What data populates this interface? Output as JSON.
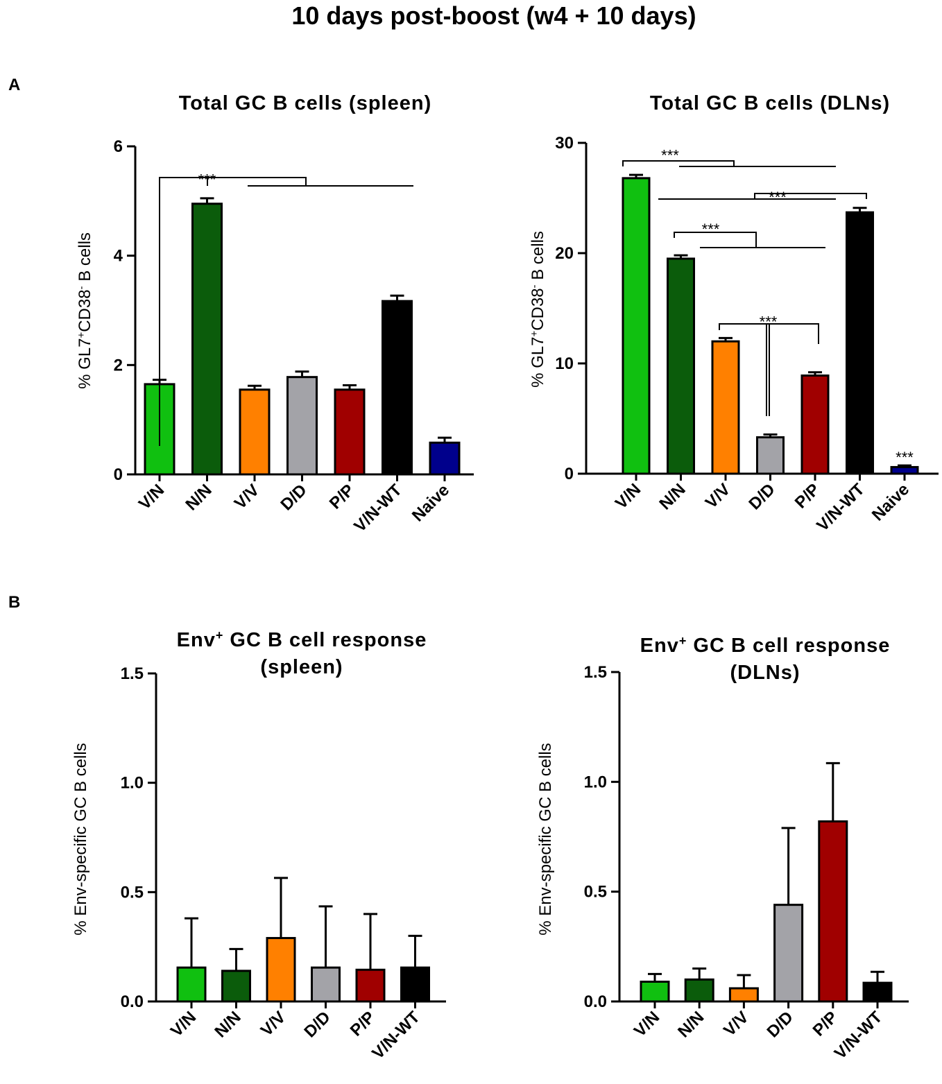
{
  "figure": {
    "title": "10 days post-boost (w4 + 10 days)",
    "panel_a_label": "A",
    "panel_b_label": "B"
  },
  "colors": {
    "V/N": "#10c010",
    "N/N": "#0b5c0b",
    "V/V": "#ff8000",
    "D/D": "#a3a3a8",
    "P/P": "#a00000",
    "V/N-WT": "#000000",
    "Naive": "#00008c"
  },
  "chart_data": [
    {
      "id": "a-spleen",
      "type": "bar",
      "title": "Total GC B cells (spleen)",
      "ylabel_parts": [
        "% GL7",
        "+",
        "CD38",
        "-",
        " B cells"
      ],
      "categories": [
        "V/N",
        "N/N",
        "V/V",
        "D/D",
        "P/P",
        "V/N-WT",
        "Naive"
      ],
      "values": [
        1.65,
        4.95,
        1.55,
        1.78,
        1.55,
        3.17,
        0.58
      ],
      "errors": [
        0.08,
        0.1,
        0.07,
        0.1,
        0.08,
        0.1,
        0.09
      ],
      "ylim": [
        0,
        6
      ],
      "yticks": [
        0,
        2,
        4,
        6
      ],
      "ytick_labels": [
        "0",
        "2",
        "4",
        "6"
      ],
      "significance": [
        {
          "label": "***",
          "x_category": "N/N",
          "y": 5.4
        }
      ]
    },
    {
      "id": "a-dln",
      "type": "bar",
      "title": "Total GC B cells (DLNs)",
      "ylabel_parts": [
        "% GL7",
        "+",
        "CD38",
        "-",
        " B cells"
      ],
      "categories": [
        "V/N",
        "N/N",
        "V/V",
        "D/D",
        "P/P",
        "V/N-WT",
        "Naive"
      ],
      "values": [
        26.8,
        19.5,
        12.0,
        3.3,
        8.9,
        23.7,
        0.6
      ],
      "errors": [
        0.3,
        0.3,
        0.3,
        0.25,
        0.3,
        0.4,
        0.15
      ],
      "ylim": [
        0,
        30
      ],
      "yticks": [
        0,
        10,
        20,
        30
      ],
      "ytick_labels": [
        "0",
        "10",
        "20",
        "30"
      ],
      "significance": [
        {
          "label": "***",
          "x_category": "V/N",
          "y": 28.9
        },
        {
          "label": "***",
          "x_category": "V/V",
          "y": 25.1
        },
        {
          "label": "***",
          "x_category": "N/N",
          "y": 22.2
        },
        {
          "label": "***",
          "x_category": "D/D",
          "y": 13.8
        },
        {
          "label": "***",
          "x_category": "Naive",
          "y": 1.5
        }
      ]
    },
    {
      "id": "b-spleen",
      "type": "bar",
      "title_lines": [
        "Env",
        "+",
        " GC B cell response",
        "(spleen)"
      ],
      "ylabel": "% Env-specific GC B cells",
      "categories": [
        "V/N",
        "N/N",
        "V/V",
        "D/D",
        "P/P",
        "V/N-WT"
      ],
      "values": [
        0.155,
        0.14,
        0.29,
        0.155,
        0.145,
        0.155
      ],
      "errors": [
        0.225,
        0.1,
        0.275,
        0.28,
        0.255,
        0.145
      ],
      "ylim": [
        0,
        1.5
      ],
      "yticks": [
        0,
        0.5,
        1.0,
        1.5
      ],
      "ytick_labels": [
        "0.0",
        "0.5",
        "1.0",
        "1.5"
      ],
      "significance": []
    },
    {
      "id": "b-dln",
      "type": "bar",
      "title_lines": [
        "Env",
        "+",
        " GC B cell response",
        "(DLNs)"
      ],
      "ylabel": "% Env-specific GC B cells",
      "categories": [
        "V/N",
        "N/N",
        "V/V",
        "D/D",
        "P/P",
        "V/N-WT"
      ],
      "values": [
        0.09,
        0.1,
        0.06,
        0.44,
        0.82,
        0.085
      ],
      "errors": [
        0.035,
        0.05,
        0.06,
        0.35,
        0.265,
        0.05
      ],
      "ylim": [
        0,
        1.5
      ],
      "yticks": [
        0,
        0.5,
        1.0,
        1.5
      ],
      "ytick_labels": [
        "0.0",
        "0.5",
        "1.0",
        "1.5"
      ],
      "significance": []
    }
  ]
}
